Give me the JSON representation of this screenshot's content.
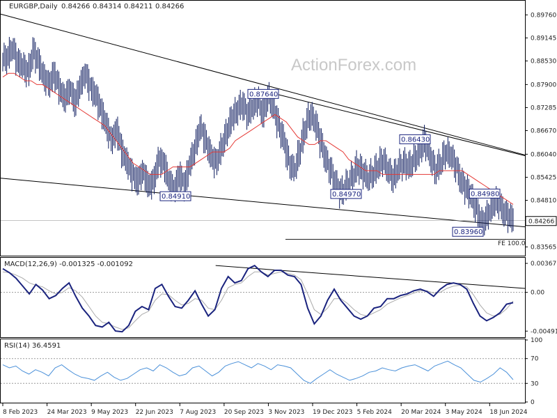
{
  "chart_data": [
    {
      "type": "line",
      "panel": "price",
      "symbol": "EURGBP,Daily",
      "ohlc": [
        "0.84266",
        "0.84314",
        "0.84211",
        "0.84266"
      ],
      "watermark": "ActionForex.com",
      "y_ticks": [
        "0.89760",
        "0.89145",
        "0.88530",
        "0.87900",
        "0.87285",
        "0.86670",
        "0.86040",
        "0.85425",
        "0.84810",
        "0.84195",
        "0.83565"
      ],
      "ylim": [
        0.8335,
        0.9012
      ],
      "last_price_label": "0.84266",
      "last_price": 0.84266,
      "annotations": [
        {
          "text": "0.87640",
          "value": 0.8764
        },
        {
          "text": "0.84910",
          "value": 0.8491
        },
        {
          "text": "0.86430",
          "value": 0.8643
        },
        {
          "text": "0.84970",
          "value": 0.8497
        },
        {
          "text": "0.84980",
          "value": 0.8498
        },
        {
          "text": "0.83960",
          "value": 0.8396
        }
      ],
      "fe_label": "FE 100.0",
      "fe_value": 0.8377,
      "close_series": [
        0.886,
        0.889,
        0.885,
        0.884,
        0.882,
        0.888,
        0.885,
        0.881,
        0.879,
        0.882,
        0.878,
        0.875,
        0.878,
        0.874,
        0.879,
        0.882,
        0.878,
        0.876,
        0.872,
        0.868,
        0.864,
        0.867,
        0.861,
        0.858,
        0.855,
        0.853,
        0.856,
        0.852,
        0.853,
        0.859,
        0.858,
        0.853,
        0.851,
        0.855,
        0.852,
        0.858,
        0.862,
        0.868,
        0.864,
        0.86,
        0.858,
        0.862,
        0.866,
        0.87,
        0.872,
        0.874,
        0.871,
        0.873,
        0.875,
        0.871,
        0.876,
        0.873,
        0.868,
        0.864,
        0.858,
        0.856,
        0.861,
        0.867,
        0.871,
        0.869,
        0.864,
        0.859,
        0.856,
        0.852,
        0.85,
        0.852,
        0.854,
        0.857,
        0.856,
        0.854,
        0.855,
        0.857,
        0.859,
        0.856,
        0.854,
        0.857,
        0.858,
        0.857,
        0.859,
        0.861,
        0.864,
        0.86,
        0.856,
        0.858,
        0.861,
        0.86,
        0.857,
        0.853,
        0.851,
        0.849,
        0.845,
        0.842,
        0.844,
        0.847,
        0.848,
        0.845,
        0.844,
        0.8427
      ],
      "ma_series": [
        0.881,
        0.882,
        0.882,
        0.881,
        0.88,
        0.88,
        0.879,
        0.879,
        0.878,
        0.877,
        0.876,
        0.875,
        0.874,
        0.873,
        0.872,
        0.871,
        0.87,
        0.869,
        0.868,
        0.866,
        0.864,
        0.862,
        0.86,
        0.858,
        0.857,
        0.856,
        0.855,
        0.855,
        0.855,
        0.856,
        0.857,
        0.857,
        0.857,
        0.857,
        0.858,
        0.859,
        0.86,
        0.861,
        0.861,
        0.861,
        0.862,
        0.864,
        0.865,
        0.866,
        0.867,
        0.868,
        0.869,
        0.87,
        0.871,
        0.87,
        0.869,
        0.867,
        0.865,
        0.864,
        0.863,
        0.863,
        0.864,
        0.864,
        0.863,
        0.862,
        0.861,
        0.859,
        0.858,
        0.857,
        0.856,
        0.856,
        0.856,
        0.855,
        0.855,
        0.855,
        0.855,
        0.855,
        0.855,
        0.855,
        0.855,
        0.855,
        0.855,
        0.856,
        0.856,
        0.856,
        0.856,
        0.856,
        0.855,
        0.854,
        0.853,
        0.852,
        0.851,
        0.85,
        0.849,
        0.848,
        0.847
      ],
      "trendlines": [
        {
          "from": [
            0,
            0.8978
          ],
          "to": [
            1,
            0.8602
          ]
        },
        {
          "from": [
            0,
            0.854
          ],
          "to": [
            1,
            0.841
          ]
        },
        {
          "from": [
            0.527,
            0.8764
          ],
          "to": [
            1,
            0.86
          ]
        }
      ]
    },
    {
      "type": "line",
      "panel": "macd",
      "title": "MACD(12,26,9) -0.001325 -0.001092",
      "y_ticks": [
        "0.003677",
        "0.00",
        "-0.004917"
      ],
      "ylim": [
        -0.0056,
        0.0043
      ],
      "macd_series": [
        0.003,
        0.0025,
        0.0018,
        0.0008,
        -0.0002,
        0.001,
        0.0003,
        -0.0008,
        -0.0004,
        0.0005,
        0.0012,
        -0.0005,
        -0.002,
        -0.003,
        -0.0042,
        -0.0044,
        -0.0038,
        -0.0049,
        -0.005,
        -0.0042,
        -0.0024,
        -0.0018,
        -0.0022,
        0.0005,
        0.001,
        -0.0005,
        -0.0018,
        -0.002,
        -0.001,
        0.0002,
        -0.0015,
        -0.003,
        -0.0022,
        0.0005,
        0.002,
        0.0012,
        0.0015,
        0.003,
        0.0034,
        0.0026,
        0.002,
        0.0028,
        0.0028,
        0.0022,
        0.002,
        0.001,
        -0.002,
        -0.004,
        -0.003,
        -0.001,
        0.0004,
        -0.001,
        -0.002,
        -0.003,
        -0.0034,
        -0.003,
        -0.002,
        -0.0018,
        -0.0008,
        -0.0008,
        -0.0004,
        -0.0002,
        0.0002,
        0.0004,
        0.0001,
        -0.0005,
        0.0004,
        0.001,
        0.0012,
        0.001,
        0.0004,
        -0.0014,
        -0.003,
        -0.0036,
        -0.0032,
        -0.0026,
        -0.0015,
        -0.0013
      ],
      "signal_series": [
        0.0026,
        0.0025,
        0.0022,
        0.0018,
        0.0012,
        0.0009,
        0.0007,
        0.0002,
        -0.0002,
        0.0,
        0.0006,
        0.0002,
        -0.0006,
        -0.0018,
        -0.003,
        -0.0038,
        -0.004,
        -0.0044,
        -0.0047,
        -0.0045,
        -0.0036,
        -0.0028,
        -0.0024,
        -0.001,
        -0.0002,
        -0.0003,
        -0.001,
        -0.0016,
        -0.0014,
        -0.0008,
        -0.001,
        -0.002,
        -0.0022,
        -0.001,
        0.0006,
        0.001,
        0.0012,
        0.002,
        0.0026,
        0.0026,
        0.0022,
        0.0024,
        0.0026,
        0.0024,
        0.0022,
        0.0016,
        -0.0002,
        -0.0022,
        -0.0028,
        -0.002,
        -0.0008,
        -0.0008,
        -0.0014,
        -0.0022,
        -0.0028,
        -0.003,
        -0.0026,
        -0.0022,
        -0.0015,
        -0.0011,
        -0.0007,
        -0.0004,
        -0.0001,
        0.0002,
        0.0002,
        -0.0001,
        0.0,
        0.0005,
        0.0008,
        0.0009,
        0.0007,
        -0.0003,
        -0.0016,
        -0.0026,
        -0.003,
        -0.0028,
        -0.0021,
        -0.0011
      ],
      "trendline": {
        "from": [
          0.41,
          0.0034
        ],
        "to": [
          1,
          0.0005
        ]
      }
    },
    {
      "type": "line",
      "panel": "rsi",
      "title": "RSI(14) 36.4591",
      "y_ticks": [
        "100",
        "70",
        "30",
        "0"
      ],
      "ylim": [
        0,
        100
      ],
      "levels": [
        70,
        30
      ],
      "rsi_series": [
        60,
        55,
        58,
        50,
        45,
        52,
        48,
        42,
        55,
        60,
        52,
        45,
        40,
        38,
        35,
        42,
        48,
        40,
        35,
        38,
        45,
        52,
        55,
        50,
        60,
        55,
        48,
        42,
        45,
        55,
        58,
        50,
        42,
        48,
        58,
        62,
        65,
        60,
        55,
        62,
        58,
        52,
        60,
        58,
        55,
        45,
        35,
        30,
        38,
        45,
        52,
        45,
        40,
        35,
        38,
        42,
        48,
        50,
        55,
        52,
        50,
        55,
        58,
        60,
        55,
        50,
        58,
        62,
        66,
        60,
        55,
        45,
        35,
        32,
        38,
        45,
        55,
        48,
        36
      ]
    }
  ],
  "x_ticks": [
    "8 Feb 2023",
    "24 Mar 2023",
    "9 May 2023",
    "22 Jun 2023",
    "7 Aug 2023",
    "20 Sep 2023",
    "3 Nov 2023",
    "19 Dec 2023",
    "5 Feb 2024",
    "20 Mar 2024",
    "3 May 2024",
    "18 Jun 2024"
  ]
}
